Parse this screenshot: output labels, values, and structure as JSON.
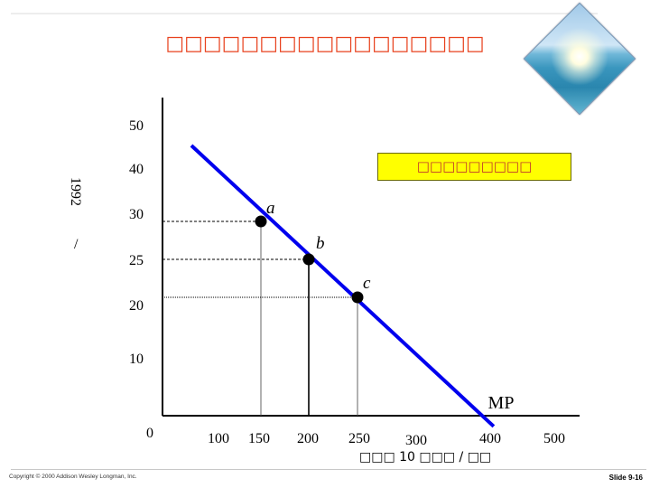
{
  "slide": {
    "title": "□□□□□□□□□□□□□□□□□",
    "callout": "□□□□□□□□□",
    "copyright": "Copyright © 2000 Addison Wesley Longman, Inc.",
    "slide_number": "Slide 9-16",
    "image_icon": "beach-sunburst-photo"
  },
  "chart_data": {
    "type": "line",
    "ylabel_top": "1992",
    "ylabel_slash": "/",
    "xlabel": "□□□ 10 □□□ / □□",
    "origin_label": "0",
    "yticks": [
      {
        "value": 50,
        "label": "50"
      },
      {
        "value": 40,
        "label": "40"
      },
      {
        "value": 30,
        "label": "30"
      },
      {
        "value": 25,
        "label": "25"
      },
      {
        "value": 20,
        "label": "20"
      },
      {
        "value": 10,
        "label": "10"
      }
    ],
    "xticks": [
      {
        "value": 100,
        "label": "100"
      },
      {
        "value": 150,
        "label": "150"
      },
      {
        "value": 200,
        "label": "200"
      },
      {
        "value": 250,
        "label": "250"
      },
      {
        "value": 300,
        "label": "300"
      },
      {
        "value": 400,
        "label": "400"
      },
      {
        "value": 500,
        "label": "500"
      }
    ],
    "series": [
      {
        "name": "MP",
        "color": "#0000ee",
        "x": [
          78,
          391
        ],
        "y": [
          40,
          3
        ]
      }
    ],
    "points": [
      {
        "label": "a",
        "x": 150,
        "y": 30
      },
      {
        "label": "b",
        "x": 200,
        "y": 25
      },
      {
        "label": "c",
        "x": 250,
        "y": 20
      }
    ],
    "xlim": [
      0,
      500
    ],
    "ylim": [
      0,
      50
    ],
    "grid": false
  }
}
